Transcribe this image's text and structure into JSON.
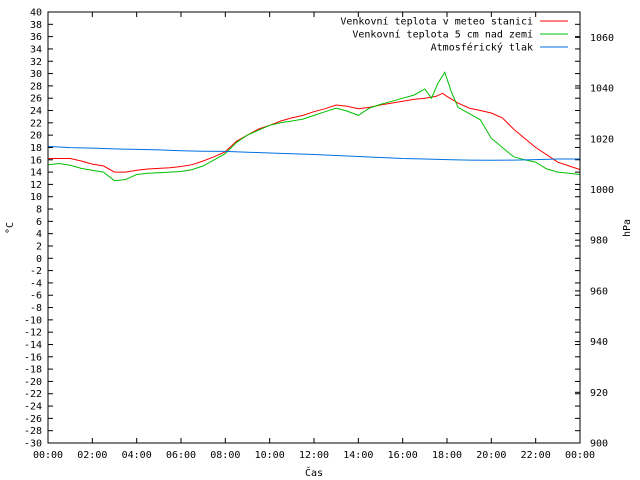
{
  "chart_data": {
    "type": "line",
    "xlabel": "Čas",
    "ylabel": "°C",
    "y2label": "hPa",
    "x_ticks": [
      "00:00",
      "02:00",
      "04:00",
      "06:00",
      "08:00",
      "10:00",
      "12:00",
      "14:00",
      "16:00",
      "18:00",
      "20:00",
      "22:00",
      "00:00"
    ],
    "xlim_hours": [
      0,
      24
    ],
    "ylim": [
      -30,
      40
    ],
    "y_ticks": [
      40,
      38,
      36,
      34,
      32,
      30,
      28,
      26,
      24,
      22,
      20,
      18,
      16,
      14,
      12,
      10,
      8,
      6,
      4,
      2,
      0,
      -2,
      -4,
      -6,
      -8,
      -10,
      -12,
      -14,
      -16,
      -18,
      -20,
      -22,
      -24,
      -26,
      -28,
      -30
    ],
    "y2lim": [
      900,
      1070
    ],
    "y2_ticks": [
      1060,
      1040,
      1020,
      1000,
      980,
      960,
      940,
      920,
      900
    ],
    "legend_position": "top-right",
    "grid": false,
    "series": [
      {
        "name": "Venkovní teplota v meteo stanici",
        "color": "#ff0000",
        "axis": "left",
        "x": [
          0,
          0.5,
          1,
          1.5,
          2,
          2.5,
          3,
          3.5,
          4,
          4.5,
          5,
          5.5,
          6,
          6.5,
          7,
          7.5,
          8,
          8.5,
          9,
          9.5,
          10,
          10.5,
          11,
          11.5,
          12,
          12.5,
          13,
          13.5,
          14,
          14.5,
          15,
          15.5,
          16,
          16.5,
          17,
          17.5,
          17.8,
          18,
          18.5,
          19,
          19.5,
          20,
          20.5,
          21,
          21.5,
          22,
          22.5,
          23,
          23.5,
          24
        ],
        "y": [
          16.2,
          16.2,
          16.2,
          15.8,
          15.3,
          15.0,
          14.0,
          14.0,
          14.3,
          14.5,
          14.6,
          14.7,
          14.9,
          15.2,
          15.8,
          16.5,
          17.3,
          19.0,
          20.0,
          21.0,
          21.6,
          22.3,
          22.8,
          23.2,
          23.8,
          24.3,
          24.9,
          24.7,
          24.3,
          24.5,
          24.9,
          25.2,
          25.5,
          25.8,
          26.0,
          26.3,
          26.8,
          26.3,
          25.2,
          24.4,
          24.0,
          23.6,
          22.8,
          21.0,
          19.5,
          18.0,
          16.8,
          15.6,
          15.0,
          14.4
        ]
      },
      {
        "name": "Venkovní teplota 5 cm nad zemí",
        "color": "#00c000",
        "axis": "left",
        "x": [
          0,
          0.5,
          1,
          1.5,
          2,
          2.5,
          3,
          3.5,
          4,
          4.5,
          5,
          5.5,
          6,
          6.5,
          7,
          7.5,
          8,
          8.5,
          9,
          9.5,
          10,
          10.5,
          11,
          11.5,
          12,
          12.5,
          13,
          13.5,
          14,
          14.5,
          15,
          15.5,
          16,
          16.5,
          17,
          17.3,
          17.6,
          17.9,
          18.2,
          18.5,
          19,
          19.5,
          20,
          20.5,
          21,
          21.5,
          22,
          22.5,
          23,
          23.5,
          24
        ],
        "y": [
          15.2,
          15.4,
          15.1,
          14.6,
          14.3,
          14.0,
          12.6,
          12.8,
          13.6,
          13.8,
          13.9,
          14.0,
          14.1,
          14.4,
          15.0,
          16.0,
          17.0,
          18.8,
          20.0,
          20.8,
          21.6,
          22.0,
          22.3,
          22.6,
          23.2,
          23.8,
          24.4,
          23.9,
          23.2,
          24.4,
          25.0,
          25.5,
          26.0,
          26.5,
          27.5,
          26.0,
          28.5,
          30.2,
          27.0,
          24.5,
          23.5,
          22.5,
          19.5,
          18.0,
          16.5,
          16.0,
          15.6,
          14.5,
          14.0,
          13.8,
          13.6
        ]
      },
      {
        "name": "Atmosférický tlak",
        "color": "#0070e0",
        "axis": "right",
        "x": [
          0,
          1,
          2,
          3,
          4,
          5,
          6,
          7,
          8,
          9,
          10,
          11,
          12,
          13,
          14,
          15,
          16,
          17,
          18,
          19,
          20,
          21,
          22,
          23,
          24
        ],
        "y": [
          1017,
          1016.5,
          1016.3,
          1016,
          1015.8,
          1015.6,
          1015.3,
          1015.1,
          1015,
          1014.7,
          1014.4,
          1014.1,
          1013.8,
          1013.4,
          1013,
          1012.6,
          1012.2,
          1012,
          1011.8,
          1011.6,
          1011.5,
          1011.6,
          1011.8,
          1012,
          1012
        ]
      }
    ]
  }
}
